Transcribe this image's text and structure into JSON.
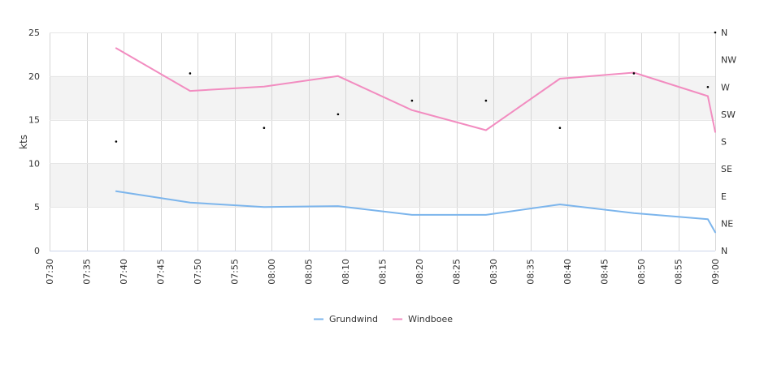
{
  "chart_data": {
    "type": "line",
    "xlabel": "",
    "ylabel": "kts",
    "x_ticks": [
      "07:30",
      "07:35",
      "07:40",
      "07:45",
      "07:50",
      "07:55",
      "08:00",
      "08:05",
      "08:10",
      "08:15",
      "08:20",
      "08:25",
      "08:30",
      "08:35",
      "08:40",
      "08:45",
      "08:50",
      "08:55",
      "09:00"
    ],
    "x_range": [
      "07:30",
      "09:00"
    ],
    "ylim": [
      0,
      25
    ],
    "y_ticks": [
      0,
      5,
      10,
      15,
      20,
      25
    ],
    "y2_labels": [
      "N",
      "NE",
      "E",
      "SE",
      "S",
      "SW",
      "W",
      "NW",
      "N"
    ],
    "y2_range_deg": [
      0,
      360
    ],
    "grid": true,
    "band_colors": [
      "#f3f3f3"
    ],
    "legend_position": "bottom-center",
    "series": [
      {
        "name": "Grundwind",
        "color": "#7cb5ec",
        "x": [
          "07:39",
          "07:49",
          "07:59",
          "08:09",
          "08:19",
          "08:29",
          "08:39",
          "08:49",
          "08:59",
          "09:00"
        ],
        "values": [
          6.8,
          5.5,
          5.0,
          5.1,
          4.1,
          4.1,
          5.3,
          4.3,
          3.6,
          2.1
        ]
      },
      {
        "name": "Windboee",
        "color": "#f28cc0",
        "x": [
          "07:39",
          "07:49",
          "07:59",
          "08:09",
          "08:19",
          "08:29",
          "08:39",
          "08:49",
          "08:59",
          "09:00"
        ],
        "values": [
          23.2,
          18.3,
          18.8,
          20.0,
          16.1,
          13.8,
          19.7,
          20.4,
          17.7,
          13.6
        ]
      }
    ],
    "direction_points": {
      "x": [
        "07:39",
        "07:49",
        "07:59",
        "08:09",
        "08:19",
        "08:29",
        "08:39",
        "08:49",
        "08:59",
        "09:00"
      ],
      "deg": [
        180,
        292.5,
        202.5,
        225,
        247.5,
        247.5,
        202.5,
        292.5,
        270,
        360
      ]
    }
  }
}
